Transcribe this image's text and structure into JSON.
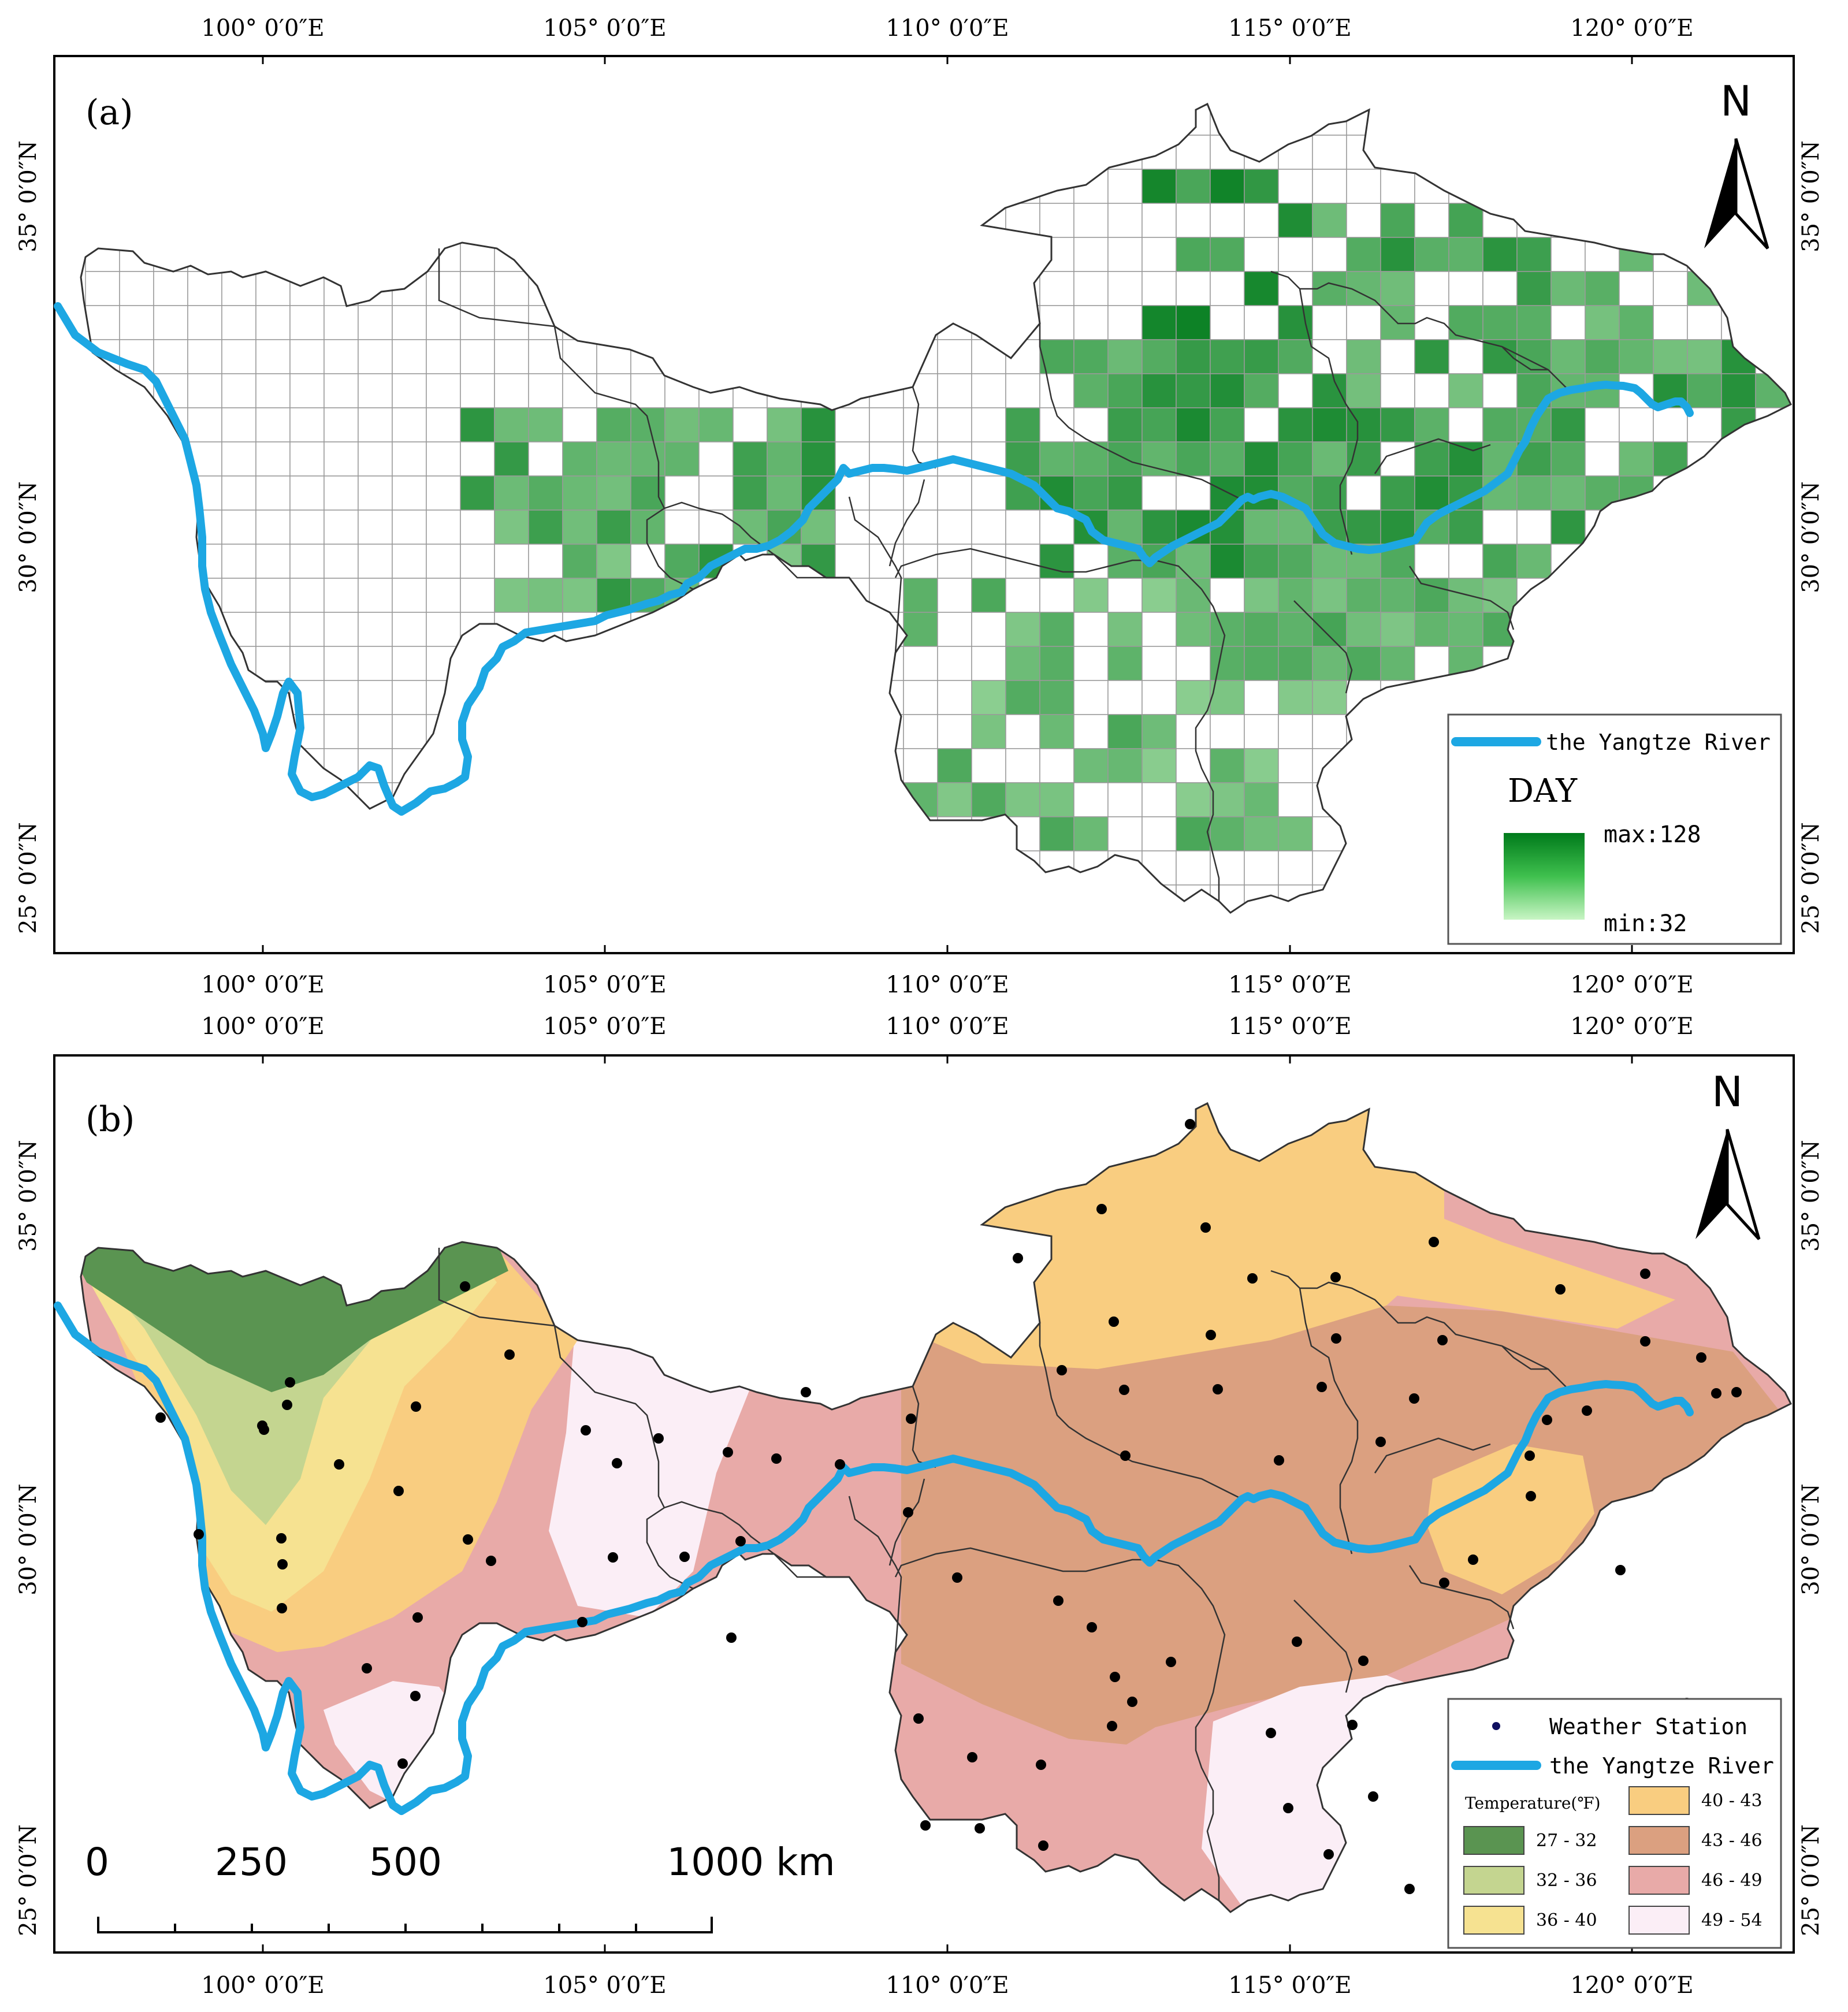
{
  "panel_a": {
    "label": "(a)",
    "north": "N",
    "lon_labels": [
      "100° 0′0″E",
      "105° 0′0″E",
      "110° 0′0″E",
      "115° 0′0″E",
      "120° 0′0″E"
    ],
    "lat_labels": [
      "25° 0′0″N",
      "30° 0′0″N",
      "35° 0′0″N"
    ],
    "legend": {
      "river_label": "the Yangtze River",
      "title": "DAY",
      "max_label": "max:128",
      "min_label": "min:32"
    },
    "colors": {
      "dark": "#007a1b",
      "light": "#c8f2c3",
      "river": "#1da7e3"
    }
  },
  "panel_b": {
    "label": "(b)",
    "north": "N",
    "lon_labels": [
      "100° 0′0″E",
      "105° 0′0″E",
      "110° 0′0″E",
      "115° 0′0″E",
      "120° 0′0″E"
    ],
    "lat_labels": [
      "25° 0′0″N",
      "30° 0′0″N",
      "35° 0′0″N"
    ],
    "legend": {
      "station_label": "Weather Station",
      "river_label": "the Yangtze River",
      "temp_title": "Temperature(℉)",
      "classes": [
        {
          "label": "27 - 32",
          "color": "#5a9451"
        },
        {
          "label": "32 - 36",
          "color": "#c4d590"
        },
        {
          "label": "36 - 40",
          "color": "#f6e291"
        },
        {
          "label": "40 - 43",
          "color": "#f9cd80"
        },
        {
          "label": "43 - 46",
          "color": "#dba080"
        },
        {
          "label": "46 - 49",
          "color": "#e8aaa8"
        },
        {
          "label": "49 - 54",
          "color": "#fbeef6"
        }
      ]
    },
    "scale_bar": {
      "labels": [
        "0",
        "250",
        "500",
        "1000 km"
      ]
    }
  }
}
